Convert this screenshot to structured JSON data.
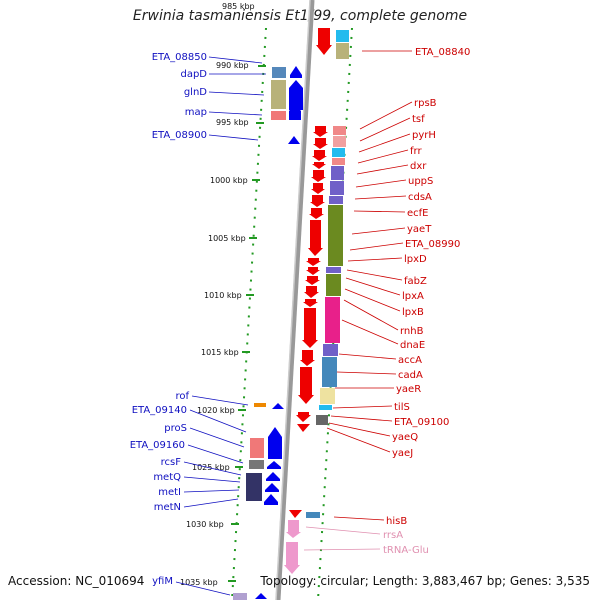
{
  "title": "Erwinia tasmaniensis Et1/99, complete genome",
  "footer": {
    "accession": "Accession: NC_010694",
    "summary": "Topology: circular; Length: 3,883,467 bp; Genes: 3,535"
  },
  "top_cut_label": "985 kbp",
  "kbp_ticks": [
    "990 kbp",
    "995 kbp",
    "1000 kbp",
    "1005 kbp",
    "1010 kbp",
    "1015 kbp",
    "1020 kbp",
    "1025 kbp",
    "1030 kbp",
    "1035 kbp"
  ],
  "left_genes": [
    "ETA_08850",
    "dapD",
    "glnD",
    "map",
    "ETA_08900",
    "rof",
    "ETA_09140",
    "proS",
    "ETA_09160",
    "rcsF",
    "metQ",
    "metI",
    "metN",
    "yfiM"
  ],
  "right_genes": [
    "ETA_08840",
    "rpsB",
    "tsf",
    "pyrH",
    "frr",
    "dxr",
    "uppS",
    "cdsA",
    "ecfE",
    "yaeT",
    "ETA_08990",
    "lpxD",
    "fabZ",
    "lpxA",
    "lpxB",
    "rnhB",
    "dnaE",
    "accA",
    "cadA",
    "yaeR",
    "tilS",
    "ETA_09100",
    "yaeQ",
    "yaeJ",
    "hisB",
    "rrsA",
    "tRNA-Glu"
  ],
  "colors": {
    "forward_gene": "#0000ee",
    "reverse_gene": "#ee0000",
    "rna_gene": "#e8a0c8",
    "left_label": "#1010c0",
    "right_label": "#cc0000",
    "rna_label": "#e090b0",
    "track_dots": "#229922",
    "backbone": "#888888"
  }
}
